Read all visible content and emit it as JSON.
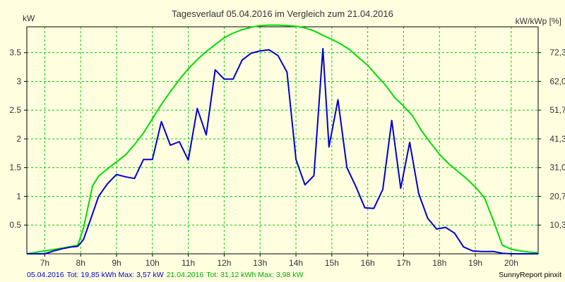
{
  "chart_data": {
    "type": "line",
    "title": "Tagesverlauf 05.04.2016 im Vergleich zum 21.04.2016",
    "ylabel_left": "kW",
    "ylabel_right": "kW/kWp [%]",
    "xlim": [
      6.5,
      20.75
    ],
    "ylim": [
      0,
      3.95
    ],
    "x_ticks": [
      7,
      8,
      9,
      10,
      11,
      12,
      13,
      14,
      15,
      16,
      17,
      18,
      19,
      20
    ],
    "x_tick_labels": [
      "7h",
      "8h",
      "9h",
      "10h",
      "11h",
      "12h",
      "13h",
      "14h",
      "15h",
      "16h",
      "17h",
      "18h",
      "19h",
      "20h"
    ],
    "y_ticks_left": [
      0.5,
      1,
      1.5,
      2,
      2.5,
      3,
      3.5
    ],
    "y_ticks_left_labels": [
      "0.5",
      "1",
      "1.5",
      "2",
      "2.5",
      "3",
      "3.5"
    ],
    "y_ticks_right_values": [
      0.5,
      1,
      1.5,
      2,
      2.5,
      3,
      3.5
    ],
    "y_ticks_right_labels": [
      "10,3",
      "20,7",
      "31,0",
      "41,3",
      "51,7",
      "62,0",
      "72,3"
    ],
    "grid": true,
    "background_color": "#ffffe0",
    "grid_color": "#00cc00",
    "series": [
      {
        "name": "05.04.2016",
        "color": "#0000cc",
        "x": [
          6.5,
          7.0,
          7.25,
          7.5,
          7.75,
          7.92,
          8.08,
          8.25,
          8.5,
          8.75,
          9.0,
          9.25,
          9.5,
          9.75,
          10.0,
          10.25,
          10.5,
          10.75,
          11.0,
          11.25,
          11.5,
          11.75,
          12.0,
          12.25,
          12.5,
          12.75,
          13.0,
          13.25,
          13.5,
          13.75,
          14.0,
          14.25,
          14.5,
          14.75,
          14.92,
          15.17,
          15.42,
          15.67,
          15.92,
          16.17,
          16.42,
          16.67,
          16.92,
          17.17,
          17.42,
          17.67,
          17.92,
          18.17,
          18.42,
          18.67,
          18.92,
          19.17,
          19.5,
          19.75,
          20.0,
          20.25,
          20.5,
          20.75
        ],
        "y": [
          0.0,
          0.0,
          0.05,
          0.09,
          0.12,
          0.13,
          0.25,
          0.55,
          1.0,
          1.22,
          1.38,
          1.34,
          1.31,
          1.64,
          1.64,
          2.3,
          1.89,
          1.95,
          1.63,
          2.53,
          2.07,
          3.2,
          3.04,
          3.04,
          3.37,
          3.49,
          3.53,
          3.55,
          3.45,
          3.16,
          1.64,
          1.2,
          1.36,
          3.57,
          1.86,
          2.68,
          1.5,
          1.17,
          0.8,
          0.79,
          1.12,
          2.32,
          1.14,
          1.94,
          1.05,
          0.62,
          0.43,
          0.46,
          0.36,
          0.12,
          0.05,
          0.04,
          0.04,
          0.01,
          0.0,
          0.0,
          0.0,
          0.0
        ]
      },
      {
        "name": "21.04.2016",
        "color": "#00dd00",
        "x": [
          6.5,
          7.0,
          7.5,
          7.92,
          8.08,
          8.33,
          8.5,
          8.75,
          9.0,
          9.25,
          9.5,
          9.75,
          10.0,
          10.25,
          10.5,
          10.75,
          11.0,
          11.25,
          11.5,
          11.75,
          12.0,
          12.25,
          12.5,
          12.75,
          13.0,
          13.25,
          13.5,
          13.75,
          14.0,
          14.25,
          14.5,
          14.75,
          15.0,
          15.25,
          15.5,
          15.75,
          16.0,
          16.25,
          16.5,
          16.75,
          17.0,
          17.25,
          17.5,
          17.75,
          18.0,
          18.25,
          18.5,
          18.75,
          19.0,
          19.25,
          19.5,
          19.75,
          20.0,
          20.25,
          20.5,
          20.75
        ],
        "y": [
          0.0,
          0.05,
          0.1,
          0.15,
          0.45,
          1.18,
          1.35,
          1.48,
          1.6,
          1.72,
          1.9,
          2.1,
          2.35,
          2.6,
          2.82,
          3.03,
          3.22,
          3.38,
          3.52,
          3.64,
          3.76,
          3.84,
          3.9,
          3.94,
          3.97,
          3.98,
          3.98,
          3.97,
          3.96,
          3.93,
          3.88,
          3.8,
          3.73,
          3.65,
          3.55,
          3.41,
          3.28,
          3.1,
          2.93,
          2.72,
          2.57,
          2.4,
          2.14,
          1.93,
          1.73,
          1.57,
          1.44,
          1.31,
          1.16,
          0.98,
          0.58,
          0.15,
          0.08,
          0.05,
          0.03,
          0.02
        ]
      }
    ]
  },
  "footer": {
    "series1_date": "05.04.2016",
    "series1_summary": "Tot: 19,85 kWh Max: 3,57 kW",
    "series2_date": "21.04.2016",
    "series2_summary": "Tot: 31,12 kWh Max: 3,98 kW",
    "credit": "SunnyReport pinxit"
  }
}
